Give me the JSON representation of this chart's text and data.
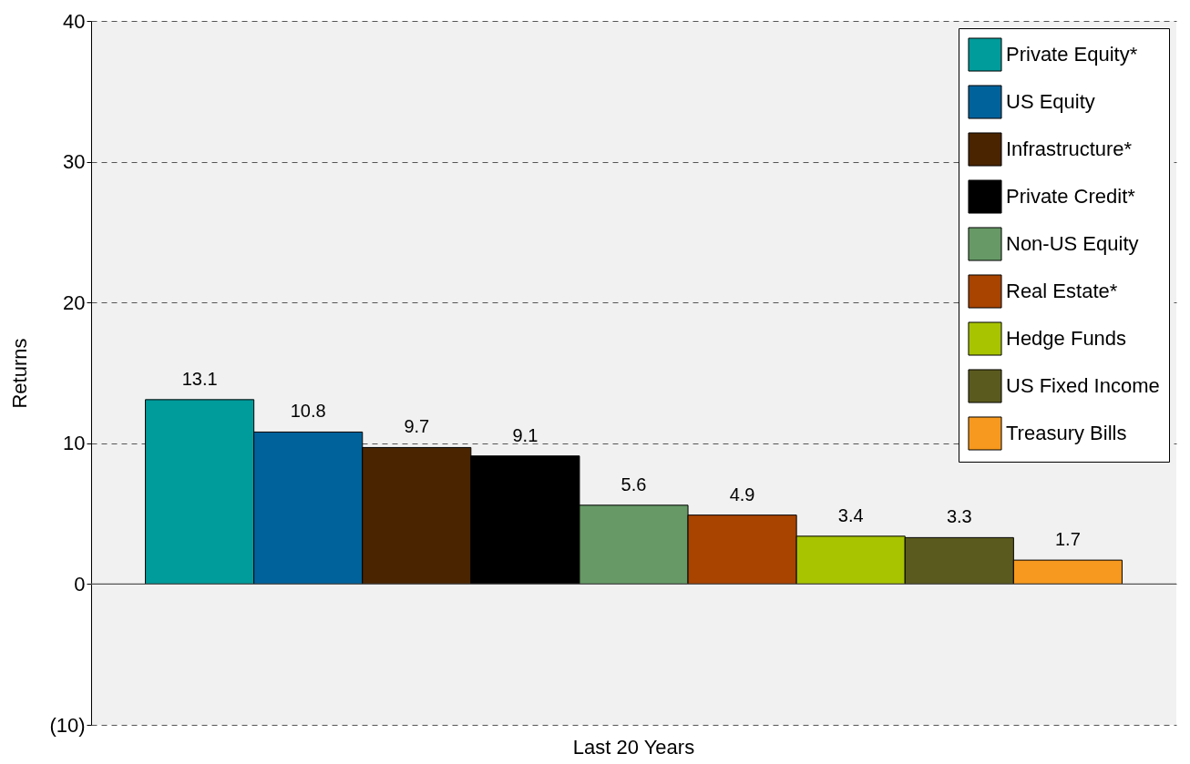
{
  "chart_data": {
    "type": "bar",
    "categories": [
      "Last 20 Years"
    ],
    "ylabel": "Returns",
    "ylim": [
      -10,
      40
    ],
    "yticks": [
      {
        "value": -10,
        "label": "(10)"
      },
      0,
      10,
      20,
      30,
      40
    ],
    "grid": "y",
    "legend": "top right",
    "data_labels": true,
    "ref_lines": [
      {
        "axis": "y",
        "value": 0,
        "color": "#555555",
        "line_style": "solid"
      }
    ],
    "series": [
      {
        "name": "Private Equity*",
        "color": "#009b9b",
        "values": [
          13.1
        ]
      },
      {
        "name": "US Equity",
        "color": "#00629b",
        "values": [
          10.8
        ]
      },
      {
        "name": "Infrastructure*",
        "color": "#4a2400",
        "values": [
          9.7
        ]
      },
      {
        "name": "Private Credit*",
        "color": "#000000",
        "values": [
          9.1
        ]
      },
      {
        "name": "Non-US Equity",
        "color": "#669966",
        "values": [
          5.6
        ]
      },
      {
        "name": "Real Estate*",
        "color": "#a84300",
        "values": [
          4.9
        ]
      },
      {
        "name": "Hedge Funds",
        "color": "#a8c400",
        "values": [
          3.4
        ]
      },
      {
        "name": "US Fixed Income",
        "color": "#5a5a1e",
        "values": [
          3.3
        ]
      },
      {
        "name": "Treasury Bills",
        "color": "#f7991e",
        "values": [
          1.7
        ]
      }
    ]
  }
}
